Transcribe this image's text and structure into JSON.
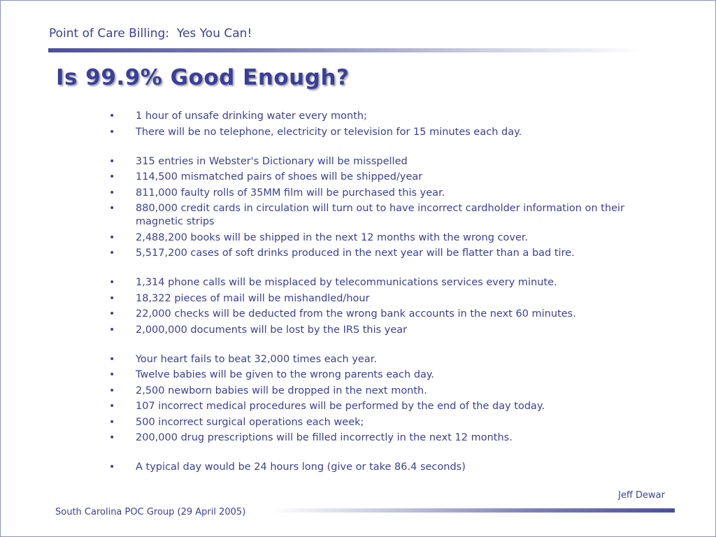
{
  "header": {
    "title": "Point of Care Billing:  Yes You Can!"
  },
  "heading": "Is 99.9% Good Enough?",
  "bullet_char": "•",
  "groups": [
    [
      "1 hour of unsafe drinking water every month;",
      "There will be no telephone, electricity or television for 15 minutes each day."
    ],
    [
      "315 entries in Webster's Dictionary will be misspelled",
      "114,500 mismatched pairs of shoes will be shipped/year",
      "811,000 faulty rolls of 35MM film will be purchased this year.",
      "880,000 credit cards in circulation will turn out to have incorrect cardholder information on their magnetic strips",
      "2,488,200 books will be shipped in the next 12 months with the wrong cover.",
      "5,517,200 cases of soft drinks produced in the next year will be flatter than a bad tire."
    ],
    [
      "1,314 phone calls will be misplaced by telecommunications services every minute.",
      "18,322 pieces of mail will be mishandled/hour",
      "22,000 checks will be deducted from the wrong bank accounts in the next 60 minutes.",
      "2,000,000 documents will be lost by the IRS this year"
    ],
    [
      "Your heart fails to beat 32,000 times each year.",
      "Twelve babies will be given to the wrong parents each day.",
      "2,500 newborn babies will be dropped in the next month.",
      "107 incorrect medical procedures will be performed by the end of the day today.",
      "500 incorrect surgical operations each week;",
      "200,000 drug prescriptions will be filled incorrectly in the next 12 months."
    ],
    [
      "A typical day would be 24 hours long (give or take 86.4 seconds)"
    ]
  ],
  "author": "Jeff Dewar",
  "footer": {
    "text": "South Carolina POC Group (29 April 2005)"
  },
  "colors": {
    "text": "#3a3f9a",
    "rule_dark": "#4a4f9f"
  }
}
